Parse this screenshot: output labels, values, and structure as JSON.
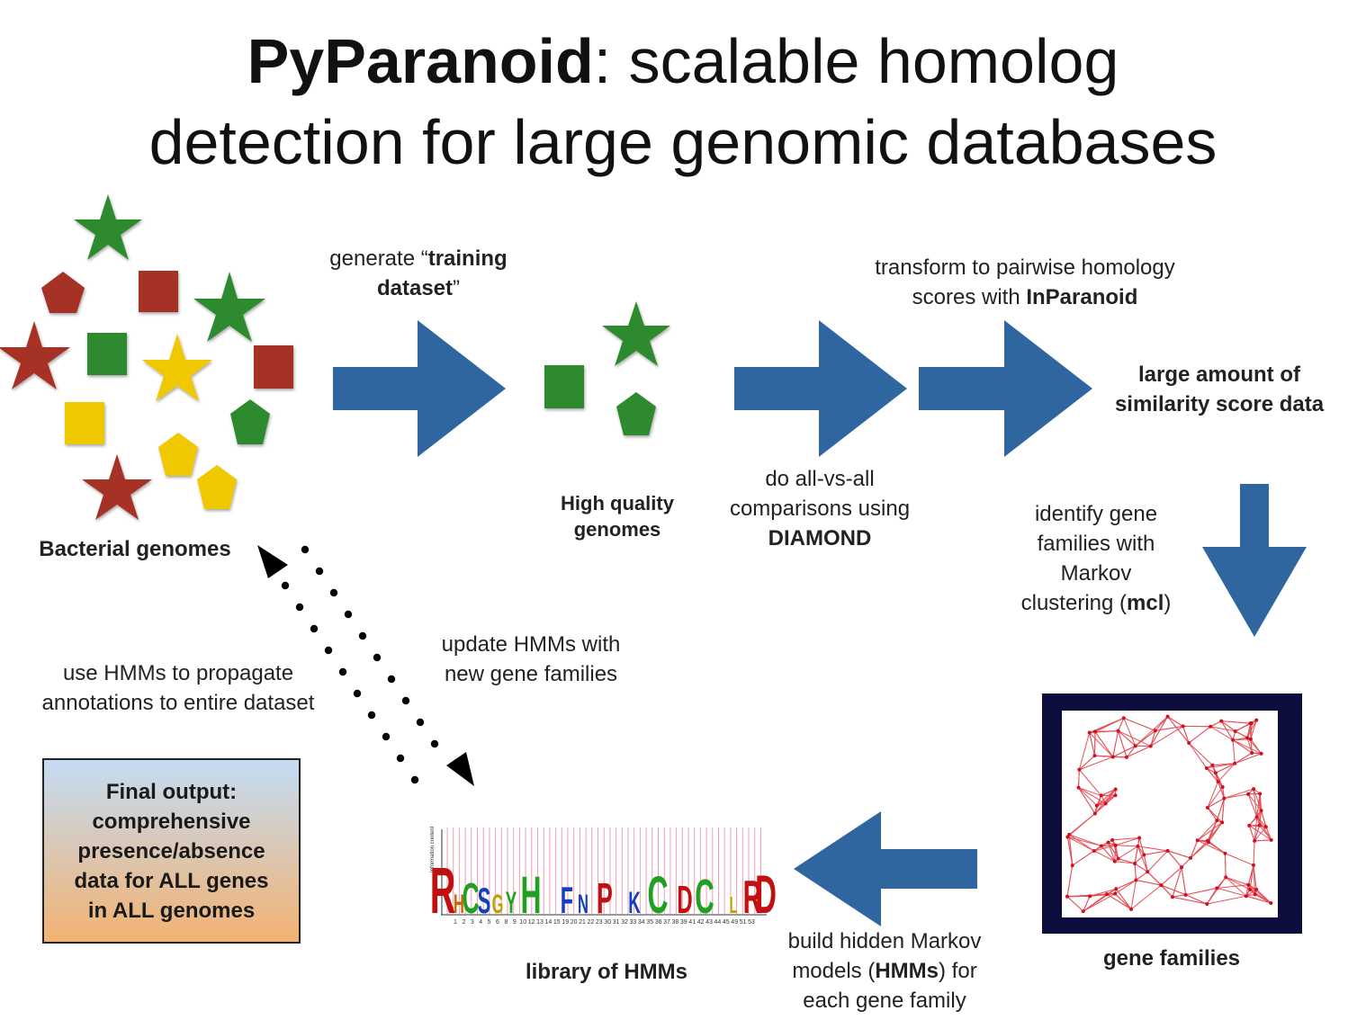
{
  "title": {
    "bold": "PyParanoid",
    "rest_line1": ": scalable homolog",
    "line2": "detection for large genomic databases"
  },
  "labels": {
    "bacterial_genomes": "Bacterial genomes",
    "training_pre": "generate “",
    "training_bold": "training",
    "training_line2_bold": "dataset",
    "training_post": "”",
    "high_quality_line1": "High quality",
    "high_quality_line2": "genomes",
    "allvsall_line1": "do all-vs-all",
    "allvsall_line2": "comparisons using",
    "allvsall_bold": "DIAMOND",
    "inparanoid_line1": "transform to pairwise homology",
    "inparanoid_line2": "scores with ",
    "inparanoid_bold": "InParanoid",
    "similarity_line1": "large amount of",
    "similarity_line2": "similarity score data",
    "mcl_line1": "identify gene",
    "mcl_line2": "families with",
    "mcl_line3": "Markov",
    "mcl_line4_pre": "clustering (",
    "mcl_bold": "mcl",
    "mcl_post": ")",
    "gene_families": "gene families",
    "build_line1": "build hidden Markov",
    "build_line2_pre": "models (",
    "build_bold": "HMMs",
    "build_line2_post": ") for",
    "build_line3": "each gene family",
    "library": "library of HMMs",
    "update_line1": "update HMMs with",
    "update_line2": "new gene families",
    "propagate_line1": "use HMMs to propagate",
    "propagate_line2": "annotations to entire dataset",
    "final_line1": "Final output:",
    "final_line2": "comprehensive",
    "final_line3": "presence/absence",
    "final_line4": "data for ALL genes",
    "final_line5": "in ALL genomes"
  },
  "colors": {
    "arrow": "#2f66a0",
    "green": "#2e8a2e",
    "red": "#a63027",
    "yellow": "#f0c800",
    "network": "#e0323c",
    "network_frame": "#0d0d3d"
  },
  "logo_letters": [
    "R",
    "H",
    "C",
    "S",
    "G",
    "Y",
    "H",
    "F",
    "N",
    "P",
    "K",
    "C",
    "D",
    "C",
    "L",
    "R",
    "D"
  ],
  "logo_positions": [
    "1",
    "2",
    "3",
    "4",
    "5",
    "6",
    "8",
    "9",
    "10",
    "12",
    "13",
    "14",
    "15",
    "19",
    "20",
    "21",
    "22",
    "23",
    "30",
    "31",
    "32",
    "33",
    "34",
    "35",
    "36",
    "37",
    "38",
    "39",
    "41",
    "42",
    "43",
    "44",
    "45",
    "49",
    "51",
    "53"
  ]
}
